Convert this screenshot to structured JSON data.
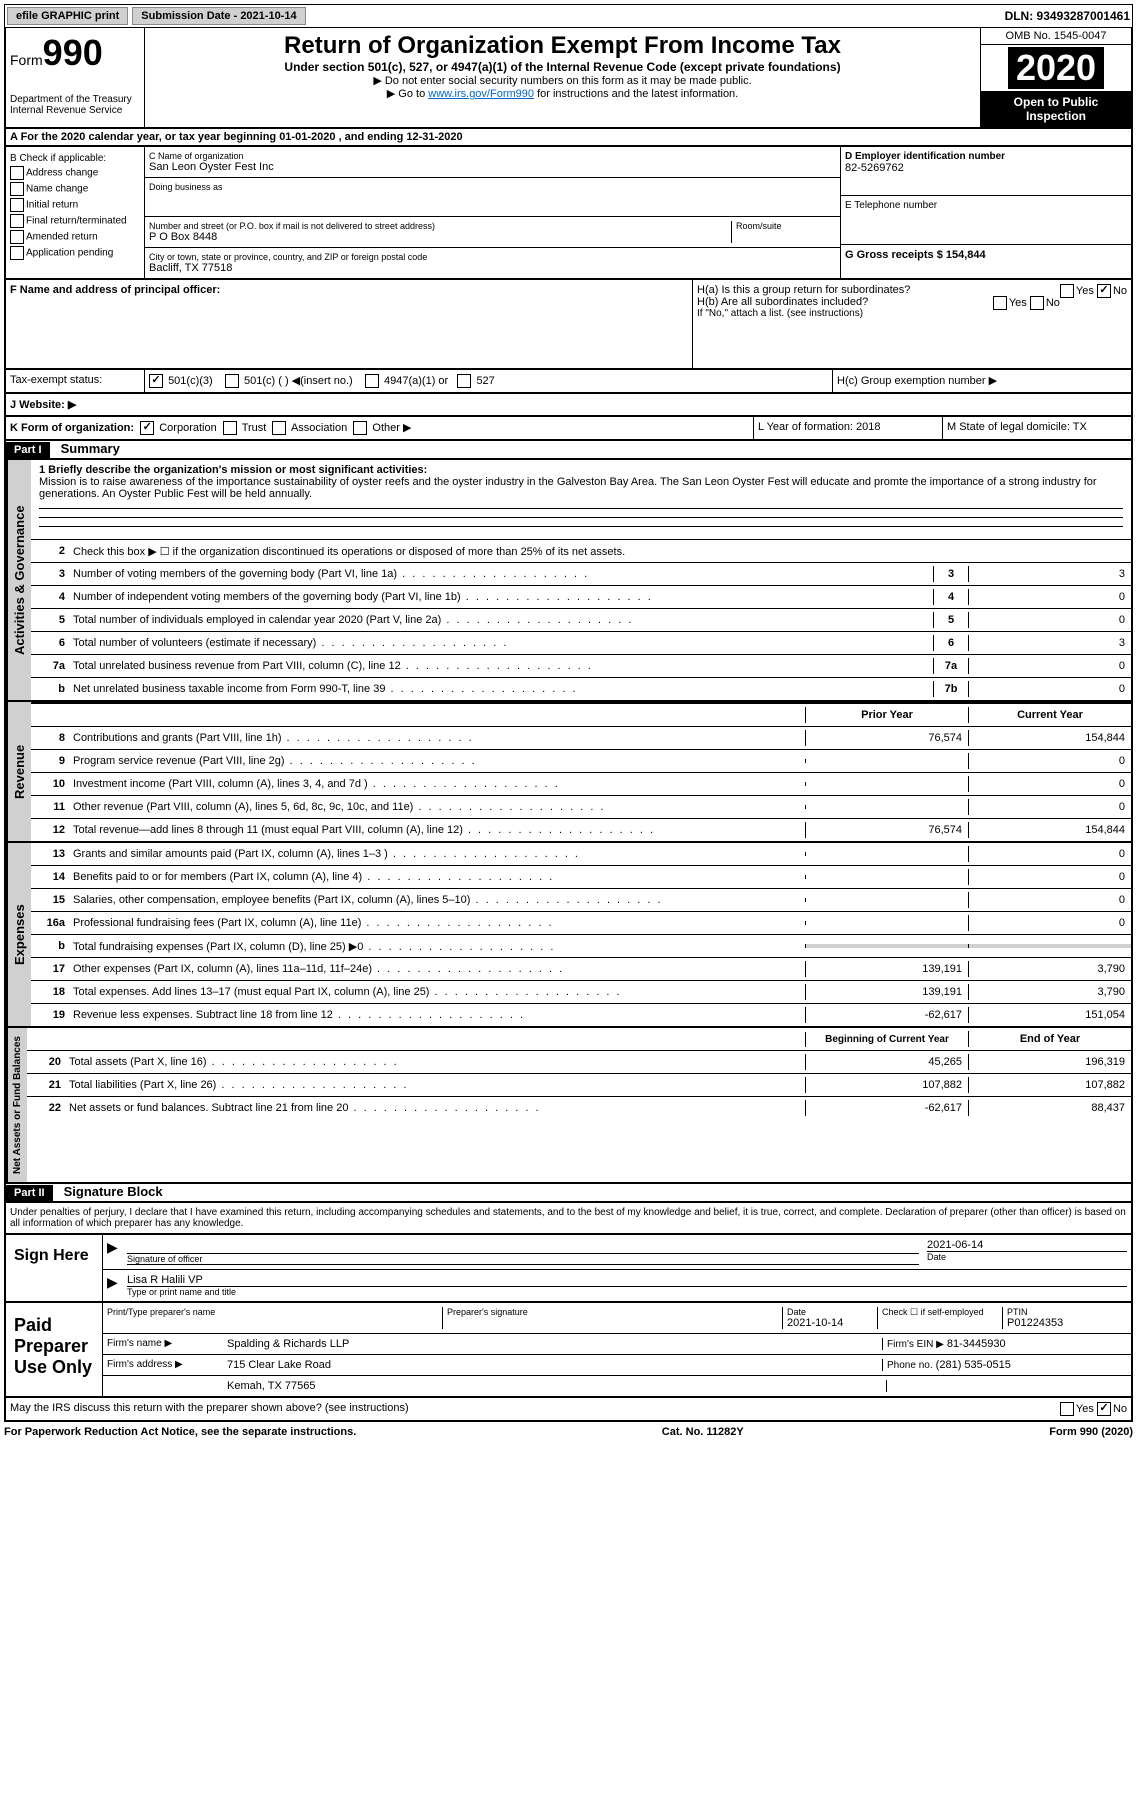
{
  "topbar": {
    "efile": "efile GRAPHIC print",
    "submission": "Submission Date - 2021-10-14",
    "dln": "DLN: 93493287001461"
  },
  "header": {
    "form_label": "Form",
    "form_number": "990",
    "dept": "Department of the Treasury\nInternal Revenue Service",
    "title": "Return of Organization Exempt From Income Tax",
    "subtitle": "Under section 501(c), 527, or 4947(a)(1) of the Internal Revenue Code (except private foundations)",
    "note1": "▶ Do not enter social security numbers on this form as it may be made public.",
    "note2_pre": "▶ Go to ",
    "note2_link": "www.irs.gov/Form990",
    "note2_post": " for instructions and the latest information.",
    "omb": "OMB No. 1545-0047",
    "year": "2020",
    "open": "Open to Public Inspection"
  },
  "section_a": "A For the 2020 calendar year, or tax year beginning 01-01-2020    , and ending 12-31-2020",
  "col_b": {
    "label": "B Check if applicable:",
    "items": [
      "Address change",
      "Name change",
      "Initial return",
      "Final return/terminated",
      "Amended return",
      "Application pending"
    ]
  },
  "col_c": {
    "name_label": "C Name of organization",
    "name": "San Leon Oyster Fest Inc",
    "dba_label": "Doing business as",
    "addr_label": "Number and street (or P.O. box if mail is not delivered to street address)",
    "room_label": "Room/suite",
    "addr": "P O Box 8448",
    "city_label": "City or town, state or province, country, and ZIP or foreign postal code",
    "city": "Bacliff, TX  77518"
  },
  "col_d": {
    "label": "D Employer identification number",
    "value": "82-5269762"
  },
  "col_e": {
    "label": "E Telephone number"
  },
  "col_g": {
    "label": "G Gross receipts $ 154,844"
  },
  "row_f": {
    "label": "F  Name and address of principal officer:"
  },
  "row_h": {
    "ha": "H(a)  Is this a group return for subordinates?",
    "hb": "H(b)  Are all subordinates included?",
    "hb_note": "If \"No,\" attach a list. (see instructions)",
    "hc": "H(c)  Group exemption number ▶"
  },
  "tax_exempt": {
    "label": "Tax-exempt status:",
    "opt1": "501(c)(3)",
    "opt2": "501(c) (  ) ◀(insert no.)",
    "opt3": "4947(a)(1) or",
    "opt4": "527"
  },
  "row_j": "J   Website: ▶",
  "row_k": {
    "label": "K Form of organization:",
    "opts": [
      "Corporation",
      "Trust",
      "Association",
      "Other ▶"
    ]
  },
  "row_l": "L Year of formation: 2018",
  "row_m": "M State of legal domicile: TX",
  "part1": {
    "header": "Part I",
    "title": "Summary",
    "line1_label": "1  Briefly describe the organization's mission or most significant activities:",
    "mission": "Mission is to raise awareness of the importance sustainability of oyster reefs and the oyster industry in the Galveston Bay Area. The San Leon Oyster Fest will educate and promte the importance of a strong industry for generations. An Oyster Public Fest will be held annually.",
    "line2": "Check this box ▶ ☐  if the organization discontinued its operations or disposed of more than 25% of its net assets.",
    "prior_year": "Prior Year",
    "current_year": "Current Year",
    "begin_year": "Beginning of Current Year",
    "end_year": "End of Year"
  },
  "lines_ag": [
    {
      "n": "3",
      "t": "Number of voting members of the governing body (Part VI, line 1a)",
      "box": "3",
      "v": "3"
    },
    {
      "n": "4",
      "t": "Number of independent voting members of the governing body (Part VI, line 1b)",
      "box": "4",
      "v": "0"
    },
    {
      "n": "5",
      "t": "Total number of individuals employed in calendar year 2020 (Part V, line 2a)",
      "box": "5",
      "v": "0"
    },
    {
      "n": "6",
      "t": "Total number of volunteers (estimate if necessary)",
      "box": "6",
      "v": "3"
    },
    {
      "n": "7a",
      "t": "Total unrelated business revenue from Part VIII, column (C), line 12",
      "box": "7a",
      "v": "0"
    },
    {
      "n": "b",
      "t": "Net unrelated business taxable income from Form 990-T, line 39",
      "box": "7b",
      "v": "0"
    }
  ],
  "lines_rev": [
    {
      "n": "8",
      "t": "Contributions and grants (Part VIII, line 1h)",
      "py": "76,574",
      "cy": "154,844"
    },
    {
      "n": "9",
      "t": "Program service revenue (Part VIII, line 2g)",
      "py": "",
      "cy": "0"
    },
    {
      "n": "10",
      "t": "Investment income (Part VIII, column (A), lines 3, 4, and 7d )",
      "py": "",
      "cy": "0"
    },
    {
      "n": "11",
      "t": "Other revenue (Part VIII, column (A), lines 5, 6d, 8c, 9c, 10c, and 11e)",
      "py": "",
      "cy": "0"
    },
    {
      "n": "12",
      "t": "Total revenue—add lines 8 through 11 (must equal Part VIII, column (A), line 12)",
      "py": "76,574",
      "cy": "154,844"
    }
  ],
  "lines_exp": [
    {
      "n": "13",
      "t": "Grants and similar amounts paid (Part IX, column (A), lines 1–3 )",
      "py": "",
      "cy": "0"
    },
    {
      "n": "14",
      "t": "Benefits paid to or for members (Part IX, column (A), line 4)",
      "py": "",
      "cy": "0"
    },
    {
      "n": "15",
      "t": "Salaries, other compensation, employee benefits (Part IX, column (A), lines 5–10)",
      "py": "",
      "cy": "0"
    },
    {
      "n": "16a",
      "t": "Professional fundraising fees (Part IX, column (A), line 11e)",
      "py": "",
      "cy": "0"
    },
    {
      "n": "b",
      "t": "Total fundraising expenses (Part IX, column (D), line 25) ▶0",
      "py": "GRAY",
      "cy": "GRAY"
    },
    {
      "n": "17",
      "t": "Other expenses (Part IX, column (A), lines 11a–11d, 11f–24e)",
      "py": "139,191",
      "cy": "3,790"
    },
    {
      "n": "18",
      "t": "Total expenses. Add lines 13–17 (must equal Part IX, column (A), line 25)",
      "py": "139,191",
      "cy": "3,790"
    },
    {
      "n": "19",
      "t": "Revenue less expenses. Subtract line 18 from line 12",
      "py": "-62,617",
      "cy": "151,054"
    }
  ],
  "lines_na": [
    {
      "n": "20",
      "t": "Total assets (Part X, line 16)",
      "py": "45,265",
      "cy": "196,319"
    },
    {
      "n": "21",
      "t": "Total liabilities (Part X, line 26)",
      "py": "107,882",
      "cy": "107,882"
    },
    {
      "n": "22",
      "t": "Net assets or fund balances. Subtract line 21 from line 20",
      "py": "-62,617",
      "cy": "88,437"
    }
  ],
  "vert_labels": {
    "ag": "Activities & Governance",
    "rev": "Revenue",
    "exp": "Expenses",
    "na": "Net Assets or Fund Balances"
  },
  "part2": {
    "header": "Part II",
    "title": "Signature Block",
    "penalty": "Under penalties of perjury, I declare that I have examined this return, including accompanying schedules and statements, and to the best of my knowledge and belief, it is true, correct, and complete. Declaration of preparer (other than officer) is based on all information of which preparer has any knowledge."
  },
  "sign": {
    "label": "Sign Here",
    "sig_label": "Signature of officer",
    "date": "2021-06-14",
    "date_label": "Date",
    "name": "Lisa R Halili  VP",
    "name_label": "Type or print name and title"
  },
  "paid": {
    "label": "Paid Preparer Use Only",
    "print_label": "Print/Type preparer's name",
    "sig_label": "Preparer's signature",
    "date_label": "Date",
    "date": "2021-10-14",
    "check_label": "Check ☐ if self-employed",
    "ptin_label": "PTIN",
    "ptin": "P01224353",
    "firm_name_label": "Firm's name    ▶",
    "firm_name": "Spalding & Richards LLP",
    "firm_ein_label": "Firm's EIN ▶",
    "firm_ein": "81-3445930",
    "firm_addr_label": "Firm's address ▶",
    "firm_addr": "715 Clear Lake Road",
    "firm_city": "Kemah, TX  77565",
    "phone_label": "Phone no.",
    "phone": "(281) 535-0515",
    "discuss": "May the IRS discuss this return with the preparer shown above? (see instructions)"
  },
  "footer": {
    "left": "For Paperwork Reduction Act Notice, see the separate instructions.",
    "mid": "Cat. No. 11282Y",
    "right": "Form 990 (2020)"
  },
  "yes": "Yes",
  "no": "No"
}
